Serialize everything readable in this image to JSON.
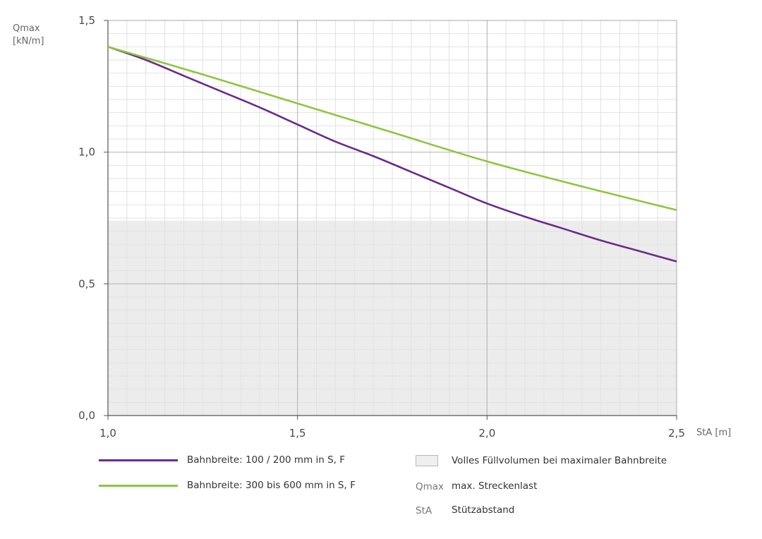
{
  "chart_data": {
    "type": "line",
    "ylabel": "Qmax",
    "ylabel_unit": "[kN/m]",
    "xlabel": "StA [m]",
    "xlim": [
      1.0,
      2.5
    ],
    "ylim": [
      0.0,
      1.5
    ],
    "x_ticks": [
      "1,0",
      "1,5",
      "2,0",
      "2,5"
    ],
    "y_ticks": [
      "0,0",
      "0,5",
      "1,0",
      "1,5"
    ],
    "grid": true,
    "shaded_region": {
      "label": "Volles Füllvolumen bei maximaler Bahnbreite",
      "y_from": 0.0,
      "y_to": 0.74,
      "color": "#ececec"
    },
    "series": [
      {
        "name": "Bahnbreite: 100 / 200 mm in S, F",
        "color": "#6a2c8a",
        "x": [
          1.0,
          1.1,
          1.2,
          1.3,
          1.4,
          1.5,
          1.6,
          1.7,
          1.8,
          1.9,
          2.0,
          2.1,
          2.2,
          2.3,
          2.4,
          2.5
        ],
        "y": [
          1.4,
          1.35,
          1.29,
          1.23,
          1.17,
          1.105,
          1.04,
          0.985,
          0.925,
          0.865,
          0.805,
          0.755,
          0.71,
          0.665,
          0.625,
          0.585
        ]
      },
      {
        "name": "Bahnbreite: 300 bis 600  mm in S, F",
        "color": "#8dc63f",
        "x": [
          1.0,
          1.25,
          1.5,
          1.75,
          2.0,
          2.25,
          2.5
        ],
        "y": [
          1.4,
          1.295,
          1.185,
          1.075,
          0.965,
          0.87,
          0.78
        ]
      }
    ]
  },
  "legend": {
    "series1": "Bahnbreite: 100 / 200 mm in S, F",
    "series2": "Bahnbreite: 300 bis 600  mm in S, F",
    "area": "Volles Füllvolumen bei maximaler Bahnbreite",
    "abbr1_key": "Qmax",
    "abbr1_text": "max. Streckenlast",
    "abbr2_key": "StA",
    "abbr2_text": "Stützabstand"
  },
  "colors": {
    "series1": "#6a2c8a",
    "series2": "#8dc63f",
    "shade": "#ececec"
  }
}
